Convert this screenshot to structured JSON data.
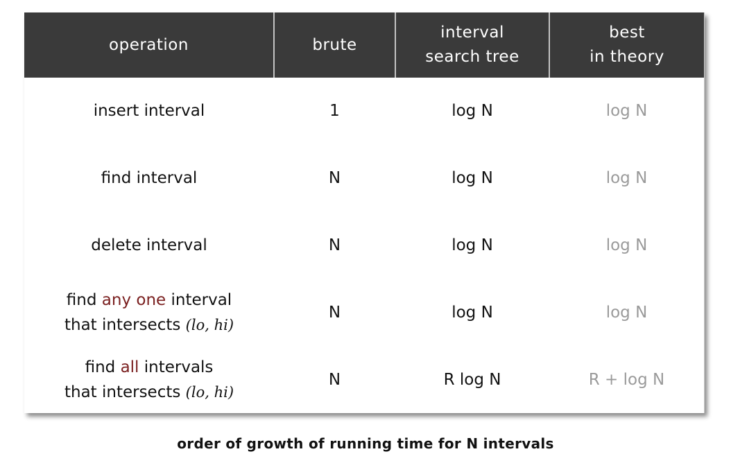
{
  "table": {
    "headers": [
      {
        "lines": [
          "operation"
        ]
      },
      {
        "lines": [
          "brute"
        ]
      },
      {
        "lines": [
          "interval",
          "search tree"
        ]
      },
      {
        "lines": [
          "best",
          "in theory"
        ]
      }
    ],
    "rows": [
      {
        "op": {
          "line1": "insert interval"
        },
        "brute": "1",
        "tree": "log N",
        "theory": "log N"
      },
      {
        "op": {
          "line1": "find interval"
        },
        "brute": "N",
        "tree": "log N",
        "theory": "log N"
      },
      {
        "op": {
          "line1": "delete interval"
        },
        "brute": "N",
        "tree": "log N",
        "theory": "log N"
      },
      {
        "op": {
          "pre": "find ",
          "emph": "any one",
          "post": " interval",
          "line2": "that intersects ",
          "math": "(lo, hi)"
        },
        "brute": "N",
        "tree": "log N",
        "theory": "log N"
      },
      {
        "op": {
          "pre": "find ",
          "emph": "all",
          "post": " intervals",
          "line2": "that intersects ",
          "math": "(lo, hi)"
        },
        "brute": "N",
        "tree": "R log N",
        "theory": "R + log N"
      }
    ]
  },
  "caption": "order of growth of running time for N intervals",
  "colors": {
    "header_bg": "#3a3a3a",
    "accent": "#7a1f1f",
    "theory_text": "#9a9a9a"
  }
}
